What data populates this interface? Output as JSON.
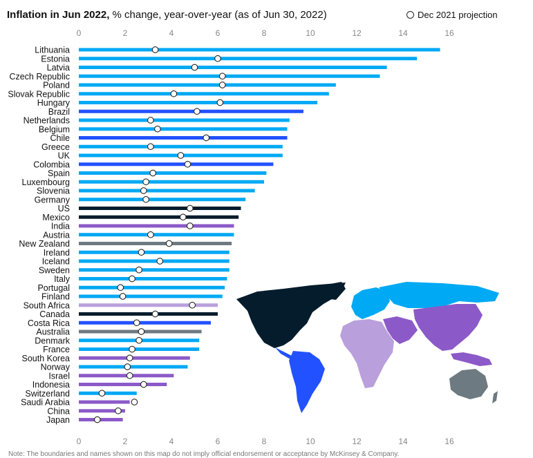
{
  "header": {
    "title_bold": "Inflation in Jun 2022,",
    "title_rest": " % change, year-over-year (as of Jun 30, 2022)",
    "legend_label": "Dec 2021 projection"
  },
  "footnote": "Note: The boundaries and names shown on this map do not imply official endorsement or acceptance by McKinsey & Company.",
  "colors": {
    "europe": "#00a9f4",
    "americas": "#2251ff",
    "north_america": "#051c2c",
    "asia_pacific": "#8c5ac8",
    "africa": "#b9a0dc",
    "oceania": "#6e7a82",
    "projection_fill": "#ffffff",
    "projection_stroke": "#222222"
  },
  "chart_data": {
    "type": "bar",
    "orientation": "horizontal",
    "xlim": [
      0,
      16
    ],
    "xticks": [
      0,
      2,
      4,
      6,
      8,
      10,
      12,
      14,
      16
    ],
    "grid": false,
    "legend_position": "top-right",
    "series": [
      {
        "name": "Inflation in Jun 2022",
        "marker": "bar"
      },
      {
        "name": "Dec 2021 projection",
        "marker": "open-circle"
      }
    ],
    "rows": [
      {
        "country": "Lithuania",
        "value": 15.6,
        "projection": 3.3,
        "region": "europe"
      },
      {
        "country": "Estonia",
        "value": 14.6,
        "projection": 6.0,
        "region": "europe"
      },
      {
        "country": "Latvia",
        "value": 13.3,
        "projection": 5.0,
        "region": "europe"
      },
      {
        "country": "Czech Republic",
        "value": 13.0,
        "projection": 6.2,
        "region": "europe"
      },
      {
        "country": "Poland",
        "value": 11.1,
        "projection": 6.2,
        "region": "europe"
      },
      {
        "country": "Slovak Republic",
        "value": 10.8,
        "projection": 4.1,
        "region": "europe"
      },
      {
        "country": "Hungary",
        "value": 10.3,
        "projection": 6.1,
        "region": "europe"
      },
      {
        "country": "Brazil",
        "value": 9.7,
        "projection": 5.1,
        "region": "americas"
      },
      {
        "country": "Netherlands",
        "value": 9.1,
        "projection": 3.1,
        "region": "europe"
      },
      {
        "country": "Belgium",
        "value": 9.0,
        "projection": 3.4,
        "region": "europe"
      },
      {
        "country": "Chile",
        "value": 9.0,
        "projection": 5.5,
        "region": "americas"
      },
      {
        "country": "Greece",
        "value": 8.8,
        "projection": 3.1,
        "region": "europe"
      },
      {
        "country": "UK",
        "value": 8.8,
        "projection": 4.4,
        "region": "europe"
      },
      {
        "country": "Colombia",
        "value": 8.4,
        "projection": 4.7,
        "region": "americas"
      },
      {
        "country": "Spain",
        "value": 8.1,
        "projection": 3.2,
        "region": "europe"
      },
      {
        "country": "Luxembourg",
        "value": 8.0,
        "projection": 2.9,
        "region": "europe"
      },
      {
        "country": "Slovenia",
        "value": 7.6,
        "projection": 2.8,
        "region": "europe"
      },
      {
        "country": "Germany",
        "value": 7.2,
        "projection": 2.9,
        "region": "europe"
      },
      {
        "country": "US",
        "value": 7.0,
        "projection": 4.8,
        "region": "north_america"
      },
      {
        "country": "Mexico",
        "value": 6.9,
        "projection": 4.5,
        "region": "north_america"
      },
      {
        "country": "India",
        "value": 6.7,
        "projection": 4.8,
        "region": "asia_pacific"
      },
      {
        "country": "Austria",
        "value": 6.7,
        "projection": 3.1,
        "region": "europe"
      },
      {
        "country": "New Zealand",
        "value": 6.6,
        "projection": 3.9,
        "region": "oceania"
      },
      {
        "country": "Ireland",
        "value": 6.5,
        "projection": 2.7,
        "region": "europe"
      },
      {
        "country": "Iceland",
        "value": 6.5,
        "projection": 3.5,
        "region": "europe"
      },
      {
        "country": "Sweden",
        "value": 6.5,
        "projection": 2.6,
        "region": "europe"
      },
      {
        "country": "Italy",
        "value": 6.4,
        "projection": 2.3,
        "region": "europe"
      },
      {
        "country": "Portugal",
        "value": 6.3,
        "projection": 1.8,
        "region": "europe"
      },
      {
        "country": "Finland",
        "value": 6.2,
        "projection": 1.9,
        "region": "europe"
      },
      {
        "country": "South Africa",
        "value": 6.0,
        "projection": 4.9,
        "region": "africa"
      },
      {
        "country": "Canada",
        "value": 6.0,
        "projection": 3.3,
        "region": "north_america"
      },
      {
        "country": "Costa Rica",
        "value": 5.7,
        "projection": 2.5,
        "region": "americas"
      },
      {
        "country": "Australia",
        "value": 5.3,
        "projection": 2.7,
        "region": "oceania"
      },
      {
        "country": "Denmark",
        "value": 5.2,
        "projection": 2.6,
        "region": "europe"
      },
      {
        "country": "France",
        "value": 5.2,
        "projection": 2.3,
        "region": "europe"
      },
      {
        "country": "South Korea",
        "value": 4.8,
        "projection": 2.2,
        "region": "asia_pacific"
      },
      {
        "country": "Norway",
        "value": 4.7,
        "projection": 2.1,
        "region": "europe"
      },
      {
        "country": "Israel",
        "value": 4.1,
        "projection": 2.2,
        "region": "asia_pacific"
      },
      {
        "country": "Indonesia",
        "value": 3.8,
        "projection": 2.8,
        "region": "asia_pacific"
      },
      {
        "country": "Switzerland",
        "value": 2.5,
        "projection": 1.0,
        "region": "europe"
      },
      {
        "country": "Saudi Arabia",
        "value": 2.2,
        "projection": 2.4,
        "region": "asia_pacific"
      },
      {
        "country": "China",
        "value": 2.0,
        "projection": 1.7,
        "region": "asia_pacific"
      },
      {
        "country": "Japan",
        "value": 1.9,
        "projection": 0.8,
        "region": "asia_pacific"
      }
    ]
  }
}
